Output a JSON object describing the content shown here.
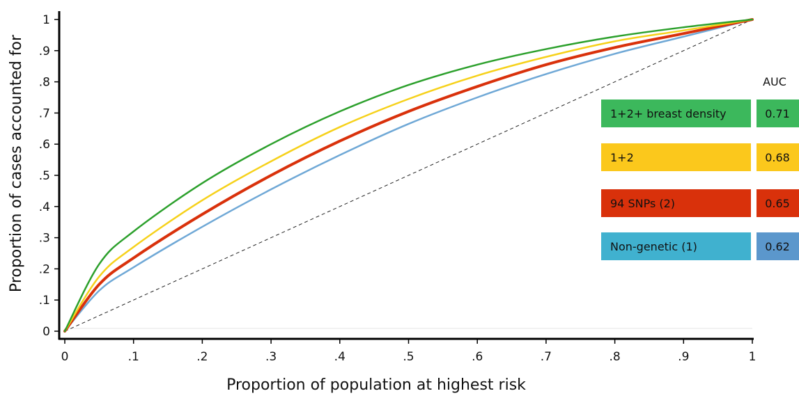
{
  "chart_data": {
    "type": "line",
    "title": "",
    "xlabel": "Proportion of population at highest risk",
    "ylabel": "Proportion of cases accounted for",
    "xlim": [
      0,
      1
    ],
    "ylim": [
      0,
      1
    ],
    "x_ticks": [
      "0",
      ".1",
      ".2",
      ".3",
      ".4",
      ".5",
      ".6",
      ".7",
      ".8",
      ".9",
      "1"
    ],
    "y_ticks": [
      "0",
      ".1",
      ".2",
      ".3",
      ".4",
      ".5",
      ".6",
      ".7",
      ".8",
      ".9",
      "1"
    ],
    "grid": false,
    "legend_position": "right",
    "legend_header": "AUC",
    "x": [
      0,
      0.05,
      0.1,
      0.2,
      0.3,
      0.4,
      0.5,
      0.6,
      0.7,
      0.8,
      0.9,
      1
    ],
    "series": [
      {
        "name": "1+2+ breast density",
        "auc": "0.71",
        "color": "#2ca02c",
        "label_bg": "#3cb85c",
        "values": [
          0,
          0.215,
          0.32,
          0.475,
          0.6,
          0.705,
          0.79,
          0.855,
          0.905,
          0.945,
          0.975,
          1
        ]
      },
      {
        "name": "1+2",
        "auc": "0.68",
        "color": "#f6d11a",
        "label_bg": "#fbc81c",
        "values": [
          0,
          0.175,
          0.27,
          0.42,
          0.545,
          0.655,
          0.745,
          0.82,
          0.88,
          0.93,
          0.965,
          1
        ]
      },
      {
        "name": "94 SNPs (2)",
        "auc": "0.65",
        "color": "#d9310b",
        "label_bg": "#d9310b",
        "values": [
          0,
          0.15,
          0.235,
          0.375,
          0.5,
          0.61,
          0.705,
          0.785,
          0.855,
          0.91,
          0.955,
          1
        ]
      },
      {
        "name": "Non-genetic (1)",
        "auc": "0.62",
        "color": "#6fa8d6",
        "label_bg": "#40b1cf",
        "auc_bg": "#5b97cc",
        "values": [
          0,
          0.13,
          0.205,
          0.335,
          0.455,
          0.565,
          0.665,
          0.75,
          0.825,
          0.89,
          0.945,
          1
        ]
      }
    ],
    "reference_line": {
      "values": [
        0,
        1
      ],
      "style": "dashed",
      "color": "#222222"
    }
  }
}
